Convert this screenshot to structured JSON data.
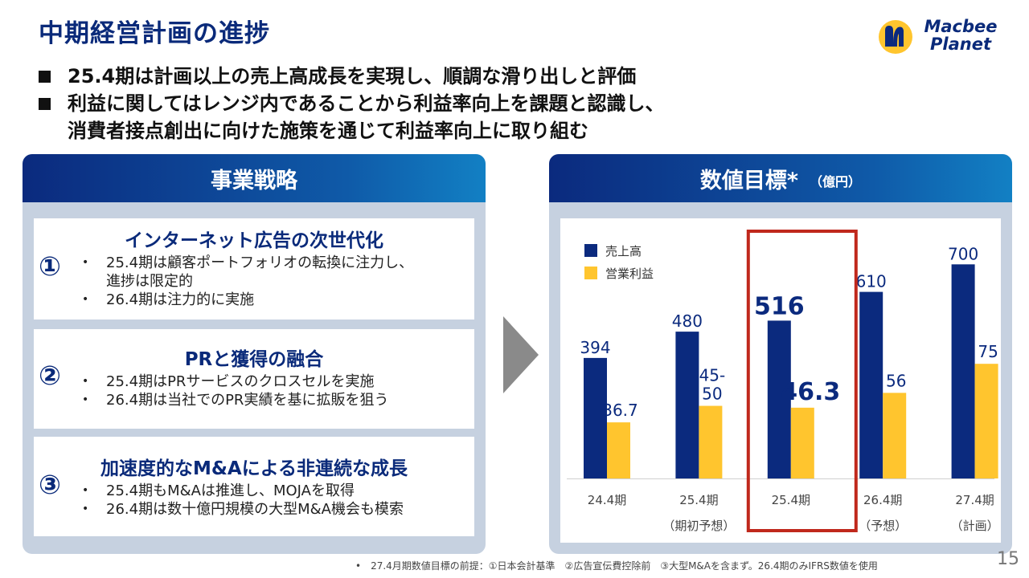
{
  "slide": {
    "title": "中期経営計画の進捗",
    "logo_line1": "Macbee",
    "logo_line2": "Planet",
    "bullets": [
      "25.4期は計画以上の売上高成長を実現し、順調な滑り出しと評価",
      "利益に関してはレンジ内であることから利益率向上を課題と認識し、",
      "消費者接点創出に向けた施策を通じて利益率向上に取り組む"
    ],
    "footnote": "•　27.4月期数値目標の前提：①日本会計基準　②広告宣伝費控除前　③大型M&Aを含まず。26.4期のみIFRS数値を使用",
    "page_number": "15"
  },
  "strategy": {
    "header": "事業戦略",
    "cards": [
      {
        "num": "①",
        "title": "インターネット広告の次世代化",
        "items": [
          "25.4期は顧客ポートフォリオの転換に注力し、",
          "進捗は限定的",
          "26.4期は注力的に実施"
        ]
      },
      {
        "num": "②",
        "title": "PRと獲得の融合",
        "items": [
          "25.4期はPRサービスのクロスセルを実施",
          "26.4期は当社でのPR実績を基に拡販を狙う"
        ]
      },
      {
        "num": "③",
        "title": "加速度的なM&Aによる非連続な成長",
        "items": [
          "25.4期もM&Aは推進し、MOJAを取得",
          "26.4期は数十億円規模の大型M&A機会も模索"
        ]
      }
    ]
  },
  "targets": {
    "header": "数値目標*",
    "unit": "（億円）"
  },
  "chart_data": {
    "type": "bar",
    "categories": [
      "24.4期",
      "25.4期",
      "25.4期",
      "26.4期",
      "27.4期"
    ],
    "category_sublabels": [
      "",
      "（期初予想）",
      "",
      "（予想）",
      "（計画）"
    ],
    "series": [
      {
        "name": "売上高",
        "color": "#0b2a7e",
        "values": [
          394,
          480,
          516,
          610,
          700
        ],
        "labels": [
          "394",
          "480",
          "516",
          "610",
          "700"
        ]
      },
      {
        "name": "営業利益",
        "color": "#ffc52e",
        "values": [
          36.7,
          47.5,
          46.3,
          56,
          75
        ],
        "labels": [
          "36.7",
          "45-\n50",
          "46.3",
          "56",
          "75"
        ]
      }
    ],
    "highlight_index": 2,
    "highlight_color": "#c0281c",
    "legend_position": "top-left",
    "grid": false,
    "note": "売上高 and 営業利益 bars drawn on separate visual scales"
  }
}
